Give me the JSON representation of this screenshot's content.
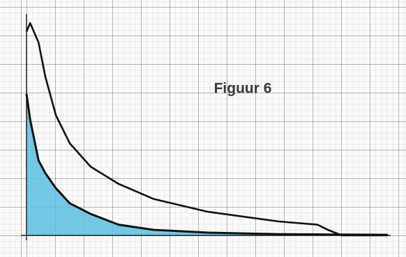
{
  "chart_data": {
    "type": "line",
    "title": "Figuur 6",
    "x": [
      0,
      1,
      3.3,
      5.2,
      8.1,
      11.9,
      17.7,
      25.4,
      35,
      50,
      69.6,
      80.2,
      83.1,
      86.9,
      99.6
    ],
    "xlim": [
      0,
      100
    ],
    "ylim": [
      0,
      100
    ],
    "grid": true,
    "series": [
      {
        "color": "#111111",
        "fill": false,
        "values": [
          95,
          99,
          90,
          74,
          56,
          43,
          32,
          24,
          17,
          11,
          6.5,
          5,
          2.6,
          0,
          0
        ]
      },
      {
        "color": "#111111",
        "fill": true,
        "fill_color": "#5bbfe0",
        "values": [
          66,
          54,
          35,
          29,
          22,
          15,
          10,
          5,
          2.6,
          1.3,
          0.6,
          0.5,
          0.4,
          0.4,
          0.3
        ]
      }
    ]
  }
}
